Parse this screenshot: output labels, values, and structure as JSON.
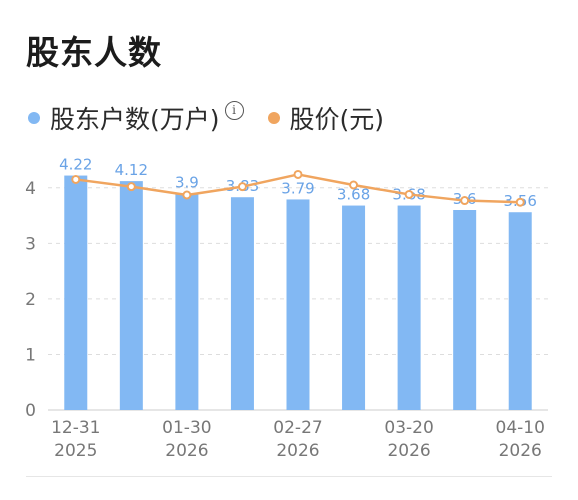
{
  "title": "股东人数",
  "legend": {
    "holders_label": "股东户数(万户)",
    "price_label": "股价(元)",
    "info_glyph": "i"
  },
  "colors": {
    "bar": "#82b8f3",
    "line": "#f0a55f",
    "label": "#6aa3e6",
    "grid": "#dddddd",
    "axis": "#777777"
  },
  "chart_data": {
    "type": "bar",
    "categories": [
      "12-31 2025",
      "",
      "01-30 2026",
      "",
      "02-27 2026",
      "",
      "03-20 2026",
      "",
      "04-10 2026"
    ],
    "x_tick_labels": [
      {
        "index": 0,
        "line1": "12-31",
        "line2": "2025"
      },
      {
        "index": 2,
        "line1": "01-30",
        "line2": "2026"
      },
      {
        "index": 4,
        "line1": "02-27",
        "line2": "2026"
      },
      {
        "index": 6,
        "line1": "03-20",
        "line2": "2026"
      },
      {
        "index": 8,
        "line1": "04-10",
        "line2": "2026"
      }
    ],
    "series": [
      {
        "name": "股东户数(万户)",
        "type": "bar",
        "values": [
          4.22,
          4.12,
          3.9,
          3.83,
          3.79,
          3.68,
          3.68,
          3.6,
          3.56
        ],
        "data_labels": [
          "4.22",
          "4.12",
          "3.9",
          "3.83",
          "3.79",
          "3.68",
          "3.68",
          "3.6",
          "3.56"
        ]
      },
      {
        "name": "股价(元)",
        "type": "line",
        "values": [
          4.15,
          4.02,
          3.87,
          4.02,
          4.24,
          4.05,
          3.88,
          3.77,
          3.74
        ]
      }
    ],
    "yticks": [
      "0",
      "1",
      "2",
      "3",
      "4"
    ],
    "ylim": [
      0,
      4.5
    ],
    "grid": true,
    "legend_position": "top-left"
  }
}
